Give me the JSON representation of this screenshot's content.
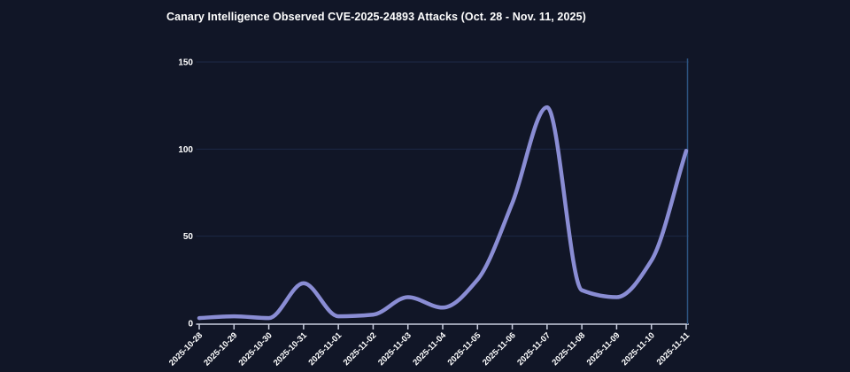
{
  "header": {
    "title": "Canary Intelligence Observed CVE-2025-24893 Attacks (Oct. 28 - Nov. 11, 2025)"
  },
  "theme": {
    "background": "#111627",
    "text_color": "#ffffff",
    "grid_color": "#1d2947",
    "axis_color": "#c9cede",
    "line_color": "#8a8dd4",
    "right_axis_color": "#2d5380"
  },
  "chart_data": {
    "type": "line",
    "title": "Canary Intelligence Observed CVE-2025-24893 Attacks (Oct. 28 - Nov. 11, 2025)",
    "x": [
      "2025-10-28",
      "2025-10-29",
      "2025-10-30",
      "2025-10-31",
      "2025-11-01",
      "2025-11-02",
      "2025-11-03",
      "2025-11-04",
      "2025-11-05",
      "2025-11-06",
      "2025-11-07",
      "2025-11-08",
      "2025-11-09",
      "2025-11-10",
      "2025-11-11"
    ],
    "values": [
      3,
      4,
      3,
      23,
      4,
      5,
      15,
      9,
      25,
      69,
      124,
      19,
      15,
      36,
      99
    ],
    "xlabel": "",
    "ylabel": "",
    "ylim": [
      0,
      150
    ],
    "yticks": [
      0,
      50,
      100,
      150
    ],
    "x_tick_rotation": -45,
    "grid": "horizontal-only",
    "legend": "none",
    "curve": "monotone"
  }
}
